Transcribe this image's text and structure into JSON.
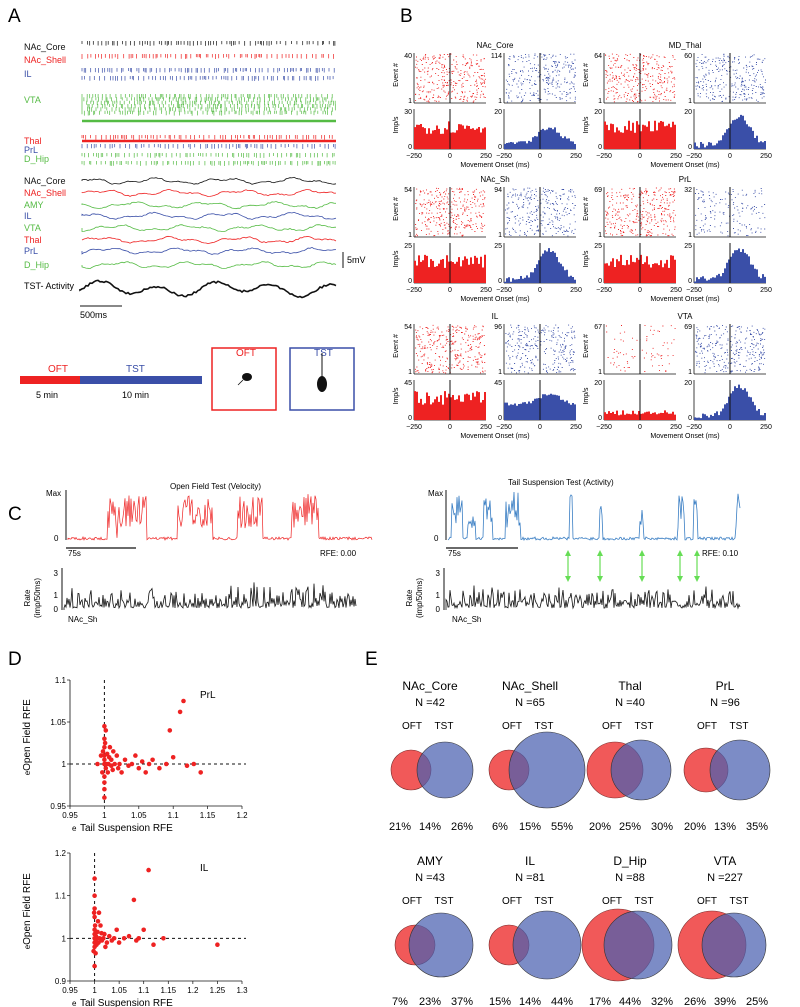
{
  "panel_letters": [
    "A",
    "B",
    "C",
    "D",
    "E"
  ],
  "colors": {
    "red": "#ee2222",
    "blue": "#3a4fa8",
    "green": "#55bb44",
    "cblue": "#3b7fc4",
    "dark": "#111111",
    "arrow": "#66dd55"
  },
  "panelA": {
    "spike_labels": [
      {
        "text": "NAc_Core",
        "color": "#111111"
      },
      {
        "text": "NAc_Shell",
        "color": "#ee2222"
      },
      {
        "text": "IL",
        "color": "#3a4fa8"
      },
      {
        "text": "VTA",
        "color": "#55bb44"
      },
      {
        "text": "Thal",
        "color": "#ee2222"
      },
      {
        "text": "PrL",
        "color": "#3a4fa8"
      },
      {
        "text": "D_Hip",
        "color": "#55bb44"
      }
    ],
    "lfp_labels": [
      {
        "text": "NAc_Core",
        "color": "#111111"
      },
      {
        "text": "NAc_Shell",
        "color": "#ee2222"
      },
      {
        "text": "AMY",
        "color": "#55bb44"
      },
      {
        "text": "IL",
        "color": "#3a4fa8"
      },
      {
        "text": "VTA",
        "color": "#55bb44"
      },
      {
        "text": "Thal",
        "color": "#ee2222"
      },
      {
        "text": "PrL",
        "color": "#3a4fa8"
      },
      {
        "text": "D_Hip",
        "color": "#55bb44"
      }
    ],
    "activity_label": "TST- Activity",
    "scale_voltage": "5mV",
    "scale_time": "500ms",
    "timeline": {
      "oft": "OFT",
      "tst": "TST",
      "oft_duration": "5 min",
      "tst_duration": "10 min"
    },
    "arena_oft": "OFT",
    "arena_tst": "TST"
  },
  "panelB": {
    "y_label_raster": "Event #",
    "y_label_rate": "Imp/s",
    "x_label": "Movement Onset (ms)",
    "x_ticks": [
      "−250",
      "0",
      "250"
    ],
    "regions": [
      {
        "name": "NAc_Core",
        "oft_events": 40,
        "tst_events": 114,
        "oft_rate_max": 30,
        "tst_rate_max": 20
      },
      {
        "name": "MD_Thal",
        "oft_events": 64,
        "tst_events": 60,
        "oft_rate_max": 20,
        "tst_rate_max": 20
      },
      {
        "name": "NAc_Sh",
        "oft_events": 54,
        "tst_events": 94,
        "oft_rate_max": 25,
        "tst_rate_max": 25
      },
      {
        "name": "PrL",
        "oft_events": 69,
        "tst_events": 32,
        "oft_rate_max": 25,
        "tst_rate_max": 25
      },
      {
        "name": "IL",
        "oft_events": 54,
        "tst_events": 96,
        "oft_rate_max": 45,
        "tst_rate_max": 45
      },
      {
        "name": "VTA",
        "oft_events": 67,
        "tst_events": 69,
        "oft_rate_max": 20,
        "tst_rate_max": 20
      }
    ]
  },
  "panelC": {
    "oft_title": "Open Field Test (Velocity)",
    "tst_title": "Tail Suspension Test (Activity)",
    "max_label": "Max",
    "zero_label": "0",
    "time_scale": "75s",
    "oft_rfe": "RFE: 0.00",
    "tst_rfe": "RFE: 0.10",
    "rate_label": "Rate",
    "rate_units": "(imp/50ms)",
    "rate_ticks": [
      "3",
      "1",
      "0"
    ],
    "unit_label": "NAc_Sh"
  },
  "panelD": {
    "y_label": "Open Field RFE",
    "x_label": "Tail Suspension RFE",
    "e_prefix": "e",
    "plots": [
      {
        "region": "PrL",
        "xlim": [
          0.95,
          1.2
        ],
        "ylim": [
          0.95,
          1.1
        ],
        "x_ticks": [
          "0.95",
          "1",
          "1.05",
          "1.1",
          "1.15",
          "1.2"
        ],
        "y_ticks": [
          "0.95",
          "1",
          "1.05",
          "1.1"
        ],
        "points": [
          [
            0.99,
            1.0
          ],
          [
            0.995,
            1.01
          ],
          [
            1.0,
            0.985
          ],
          [
            1.0,
            1.0
          ],
          [
            1.0,
            1.005
          ],
          [
            1.0,
            1.01
          ],
          [
            1.0,
            1.02
          ],
          [
            1.0,
            1.03
          ],
          [
            1.0,
            1.045
          ],
          [
            1.0,
            0.97
          ],
          [
            1.002,
            0.995
          ],
          [
            1.003,
            1.0
          ],
          [
            1.004,
            1.012
          ],
          [
            1.005,
            0.99
          ],
          [
            1.006,
            1.0
          ],
          [
            1.008,
            1.02
          ],
          [
            1.01,
            0.998
          ],
          [
            1.01,
            1.005
          ],
          [
            1.012,
            0.993
          ],
          [
            1.015,
            1.0
          ],
          [
            1.018,
            1.01
          ],
          [
            1.02,
            0.995
          ],
          [
            1.022,
            1.0
          ],
          [
            1.025,
            0.99
          ],
          [
            1.03,
            1.005
          ],
          [
            1.035,
            0.998
          ],
          [
            1.04,
            1.0
          ],
          [
            1.045,
            1.01
          ],
          [
            1.05,
            0.995
          ],
          [
            1.055,
            1.003
          ],
          [
            1.06,
            0.99
          ],
          [
            1.065,
            1.0
          ],
          [
            1.07,
            1.005
          ],
          [
            1.08,
            0.995
          ],
          [
            1.09,
            1.0
          ],
          [
            1.095,
            1.04
          ],
          [
            1.1,
            1.008
          ],
          [
            1.11,
            1.062
          ],
          [
            1.115,
            1.075
          ],
          [
            1.12,
            0.998
          ],
          [
            1.13,
            1.0
          ],
          [
            1.14,
            0.99
          ],
          [
            1.0,
            0.978
          ],
          [
            0.998,
            1.015
          ],
          [
            1.001,
            1.025
          ],
          [
            0.997,
            0.99
          ],
          [
            1.0,
            0.96
          ],
          [
            1.002,
            1.04
          ],
          [
            1.007,
            1.008
          ],
          [
            1.013,
            1.015
          ]
        ]
      },
      {
        "region": "IL",
        "xlim": [
          0.95,
          1.3
        ],
        "ylim": [
          0.9,
          1.2
        ],
        "x_ticks": [
          "0.95",
          "1",
          "1.05",
          "1.1",
          "1.15",
          "1.2",
          "1.25",
          "1.3"
        ],
        "y_ticks": [
          "0.9",
          "1",
          "1.1",
          "1.2"
        ],
        "points": [
          [
            0.998,
            0.97
          ],
          [
            1.0,
            0.98
          ],
          [
            1.0,
            0.99
          ],
          [
            1.0,
            1.0
          ],
          [
            1.0,
            1.01
          ],
          [
            1.0,
            1.02
          ],
          [
            1.0,
            1.05
          ],
          [
            1.0,
            1.07
          ],
          [
            1.0,
            1.1
          ],
          [
            1.0,
            1.14
          ],
          [
            1.002,
            0.995
          ],
          [
            1.003,
            1.005
          ],
          [
            1.004,
            0.985
          ],
          [
            1.005,
            1.0
          ],
          [
            1.006,
            1.015
          ],
          [
            1.008,
            0.99
          ],
          [
            1.01,
            1.0
          ],
          [
            1.012,
            1.03
          ],
          [
            1.015,
            0.995
          ],
          [
            1.018,
            1.0
          ],
          [
            1.02,
            1.01
          ],
          [
            1.025,
            0.99
          ],
          [
            1.03,
            1.005
          ],
          [
            1.035,
            0.995
          ],
          [
            1.04,
            1.0
          ],
          [
            1.045,
            1.02
          ],
          [
            1.05,
            0.99
          ],
          [
            1.06,
            1.0
          ],
          [
            1.07,
            1.005
          ],
          [
            1.08,
            1.09
          ],
          [
            1.085,
            0.995
          ],
          [
            1.09,
            1.0
          ],
          [
            1.1,
            1.02
          ],
          [
            1.11,
            1.16
          ],
          [
            1.12,
            0.985
          ],
          [
            1.14,
            1.0
          ],
          [
            1.25,
            0.985
          ],
          [
            1.0,
            0.935
          ],
          [
            0.999,
            1.06
          ],
          [
            1.001,
            1.03
          ],
          [
            1.002,
            0.965
          ],
          [
            1.007,
            1.04
          ],
          [
            1.009,
            1.06
          ],
          [
            1.014,
            1.012
          ],
          [
            1.022,
            0.98
          ]
        ]
      }
    ]
  },
  "panelE": {
    "oft_label": "OFT",
    "tst_label": "TST",
    "regions": [
      {
        "name": "NAc_Core",
        "n": "N =42",
        "oft_only": "21%",
        "both": "14%",
        "tst_only": "26%",
        "r_oft": 20,
        "r_tst": 28,
        "dx": 34
      },
      {
        "name": "NAc_Shell",
        "n": "N =65",
        "oft_only": "6%",
        "both": "15%",
        "tst_only": "55%",
        "r_oft": 20,
        "r_tst": 38,
        "dx": 38
      },
      {
        "name": "Thal",
        "n": "N =40",
        "oft_only": "20%",
        "both": "25%",
        "tst_only": "30%",
        "r_oft": 28,
        "r_tst": 30,
        "dx": 26
      },
      {
        "name": "PrL",
        "n": "N =96",
        "oft_only": "20%",
        "both": "13%",
        "tst_only": "35%",
        "r_oft": 22,
        "r_tst": 30,
        "dx": 34
      },
      {
        "name": "AMY",
        "n": "N =43",
        "oft_only": "7%",
        "both": "23%",
        "tst_only": "37%",
        "r_oft": 20,
        "r_tst": 32,
        "dx": 26
      },
      {
        "name": "IL",
        "n": "N =81",
        "oft_only": "15%",
        "both": "14%",
        "tst_only": "44%",
        "r_oft": 20,
        "r_tst": 34,
        "dx": 38
      },
      {
        "name": "D_Hip",
        "n": "N =88",
        "oft_only": "17%",
        "both": "44%",
        "tst_only": "32%",
        "r_oft": 36,
        "r_tst": 34,
        "dx": 20
      },
      {
        "name": "VTA",
        "n": "N =227",
        "oft_only": "26%",
        "both": "39%",
        "tst_only": "25%",
        "r_oft": 34,
        "r_tst": 32,
        "dx": 22
      }
    ]
  }
}
